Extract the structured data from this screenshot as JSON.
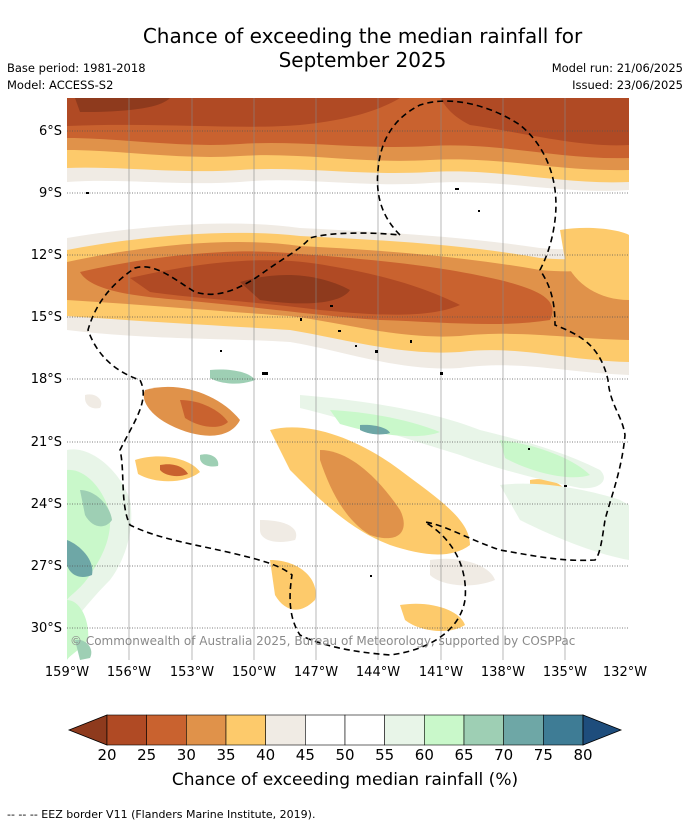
{
  "title_line1": "Chance of exceeding the median rainfall for",
  "title_line2": "September 2025",
  "meta_left": {
    "base_period": "Base period: 1981-2018",
    "model": "Model: ACCESS-S2"
  },
  "meta_right": {
    "model_run": "Model run: 21/06/2025",
    "issued": "Issued: 23/06/2025"
  },
  "lat_ticks": [
    "6°S",
    "9°S",
    "12°S",
    "15°S",
    "18°S",
    "21°S",
    "24°S",
    "27°S",
    "30°S"
  ],
  "lon_ticks": [
    "159°W",
    "156°W",
    "153°W",
    "150°W",
    "147°W",
    "144°W",
    "141°W",
    "138°W",
    "135°W",
    "132°W"
  ],
  "copyright": "© Commonwealth of Australia 2025, Bureau of Meteorology, supported by COSPPac",
  "colorbar": {
    "labels": [
      "20",
      "25",
      "30",
      "35",
      "40",
      "45",
      "50",
      "55",
      "60",
      "65",
      "70",
      "75",
      "80"
    ],
    "colors": [
      "#8e3a1d",
      "#b04a24",
      "#c9622f",
      "#e0924a",
      "#fdca6b",
      "#f0ebe4",
      "#ffffff",
      "#ffffff",
      "#e8f5e8",
      "#c9f8ca",
      "#9ecfb4",
      "#6ea7a6",
      "#3e7c95",
      "#1e4d7c"
    ],
    "title": "Chance of exceeding median rainfall (%)"
  },
  "eez_note": "-- -- -- EEZ border V11 (Flanders Marine Institute, 2019)."
}
